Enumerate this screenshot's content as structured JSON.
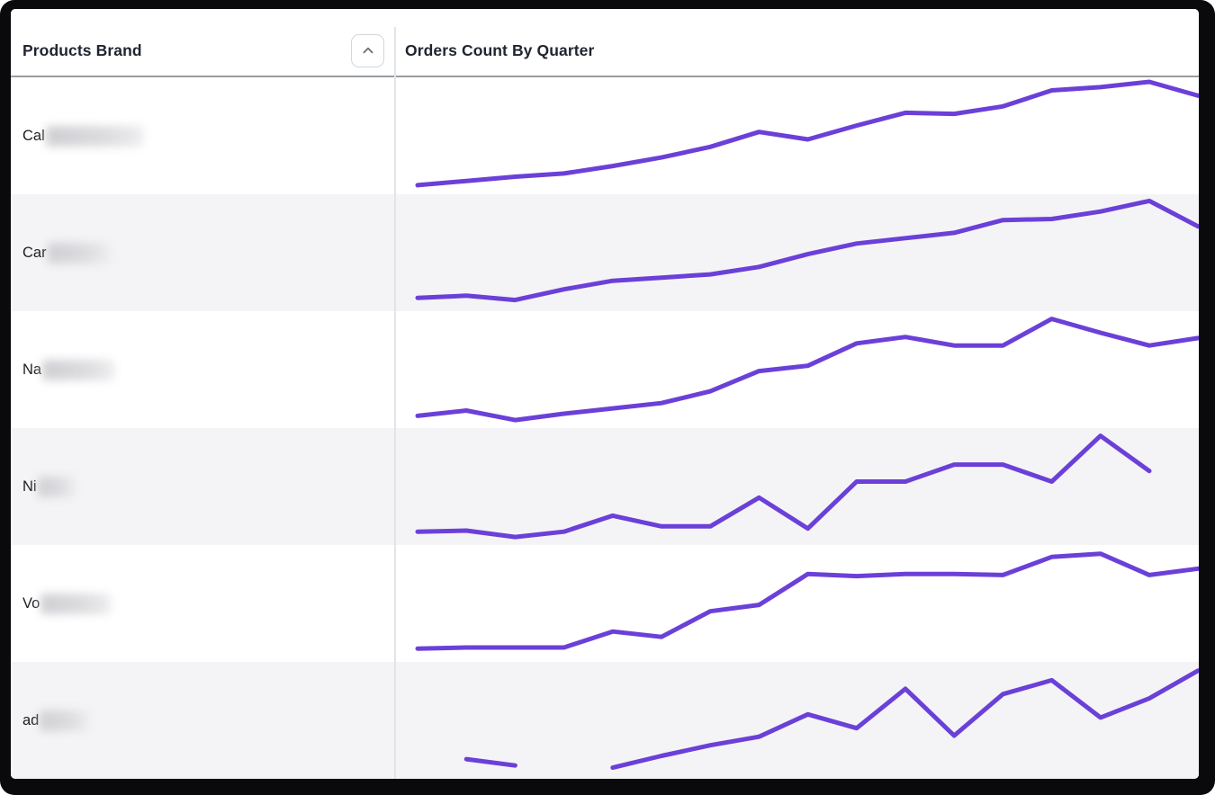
{
  "header": {
    "col1_label": "Products Brand",
    "col2_label": "Orders Count By Quarter",
    "sort_icon": "chevron-up",
    "sort_direction": "ascending"
  },
  "table": {
    "rows": [
      {
        "label_visible": "Cal",
        "label_redacted": true,
        "redacted_width": 108
      },
      {
        "label_visible": "Car",
        "label_redacted": true,
        "redacted_width": 70
      },
      {
        "label_visible": "Na",
        "label_redacted": true,
        "redacted_width": 80
      },
      {
        "label_visible": "Ni",
        "label_redacted": true,
        "redacted_width": 42
      },
      {
        "label_visible": "Vo",
        "label_redacted": true,
        "redacted_width": 78
      },
      {
        "label_visible": "ad",
        "label_redacted": true,
        "redacted_width": 55
      }
    ]
  },
  "chart_data": {
    "type": "line",
    "title": "Orders Count By Quarter",
    "x": {
      "type": "quarters",
      "count": 17,
      "labels_visible": false
    },
    "ylim": [
      0,
      100
    ],
    "value_scale": "relative per-row sparkline, 0-100 estimated from pixels (no axes shown)",
    "grid": false,
    "legend": false,
    "series": [
      {
        "name": "Cal (redacted)",
        "values": [
          3,
          7,
          11,
          14,
          21,
          29,
          39,
          53,
          46,
          59,
          71,
          70,
          77,
          92,
          95,
          100,
          87
        ]
      },
      {
        "name": "Car (redacted)",
        "values": [
          7,
          9,
          5,
          15,
          23,
          26,
          29,
          36,
          48,
          58,
          63,
          68,
          80,
          81,
          88,
          98,
          74
        ]
      },
      {
        "name": "Na (redacted)",
        "values": [
          6,
          11,
          2,
          8,
          13,
          18,
          29,
          48,
          53,
          74,
          80,
          72,
          72,
          97,
          84,
          72,
          79
        ]
      },
      {
        "name": "Ni (redacted)",
        "values": [
          7,
          8,
          2,
          7,
          22,
          12,
          12,
          39,
          10,
          54,
          54,
          70,
          70,
          54,
          97,
          64,
          null
        ]
      },
      {
        "name": "Vo (redacted)",
        "values": [
          7,
          8,
          8,
          8,
          23,
          18,
          42,
          48,
          77,
          75,
          77,
          77,
          76,
          93,
          96,
          76,
          82
        ]
      },
      {
        "name": "ad (redacted)",
        "values": [
          null,
          13,
          7,
          null,
          5,
          16,
          26,
          34,
          55,
          42,
          79,
          35,
          74,
          87,
          52,
          70,
          96
        ]
      }
    ]
  },
  "colors": {
    "accent_line": "#6b40d8",
    "row_alt_bg": "#f4f4f6",
    "header_text": "#1f2430",
    "header_underline": "#989ca1",
    "column_divider": "#e2e4e8",
    "frame": "#0a0a0c",
    "sort_button_border": "#d3d6db",
    "sort_chevron": "#6d737c"
  }
}
